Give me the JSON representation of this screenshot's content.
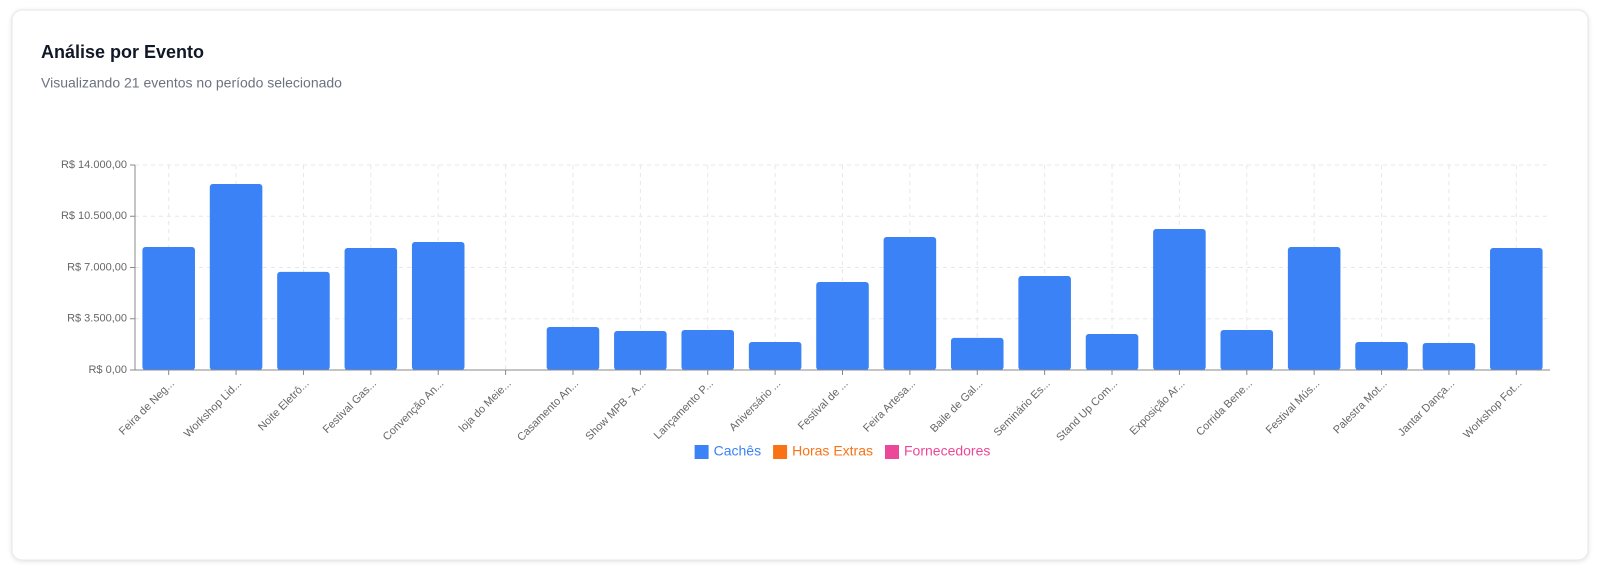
{
  "chart_data": {
    "type": "bar",
    "title": "Análise por Evento",
    "subtitle": "Visualizando 21 eventos no período selecionado",
    "categories": [
      "Feira de Neg...",
      "Workshop Lid...",
      "Noite Eletrô...",
      "Festival Gas...",
      "Convenção An...",
      "loja do Meie...",
      "Casamento An...",
      "Show MPB - A...",
      "Lançamento P...",
      "Aniversário ...",
      "Festival de ...",
      "Feira Artesa...",
      "Baile de Gal...",
      "Seminário Es...",
      "Stand Up Com...",
      "Exposição Ar...",
      "Corrida Bene...",
      "Festival Mús...",
      "Palestra Mot...",
      "Jantar Dança...",
      "Workshop Fot..."
    ],
    "series": [
      {
        "name": "Cachês",
        "color": "#3b82f6",
        "values": [
          8400,
          12700,
          6700,
          8330,
          8740,
          0,
          2940,
          2660,
          2730,
          1910,
          6010,
          9080,
          2190,
          6420,
          2460,
          9630,
          2730,
          8400,
          1910,
          1840,
          8330
        ]
      },
      {
        "name": "Horas Extras",
        "color": "#f97316",
        "values": [
          0,
          0,
          0,
          0,
          0,
          0,
          0,
          0,
          0,
          0,
          0,
          0,
          0,
          0,
          0,
          0,
          0,
          0,
          0,
          0,
          0
        ]
      },
      {
        "name": "Fornecedores",
        "color": "#ec4899",
        "values": [
          0,
          0,
          0,
          0,
          0,
          0,
          0,
          0,
          0,
          0,
          0,
          0,
          0,
          0,
          0,
          0,
          0,
          0,
          0,
          0,
          0
        ]
      }
    ],
    "stacked": true,
    "ylim": [
      0,
      14000
    ],
    "yticks": [
      {
        "value": 0,
        "label": "R$ 0,00"
      },
      {
        "value": 3500,
        "label": "R$ 3.500,00"
      },
      {
        "value": 7000,
        "label": "R$ 7.000,00"
      },
      {
        "value": 10500,
        "label": "R$ 10.500,00"
      },
      {
        "value": 14000,
        "label": "R$ 14.000,00"
      }
    ],
    "grid": true
  }
}
